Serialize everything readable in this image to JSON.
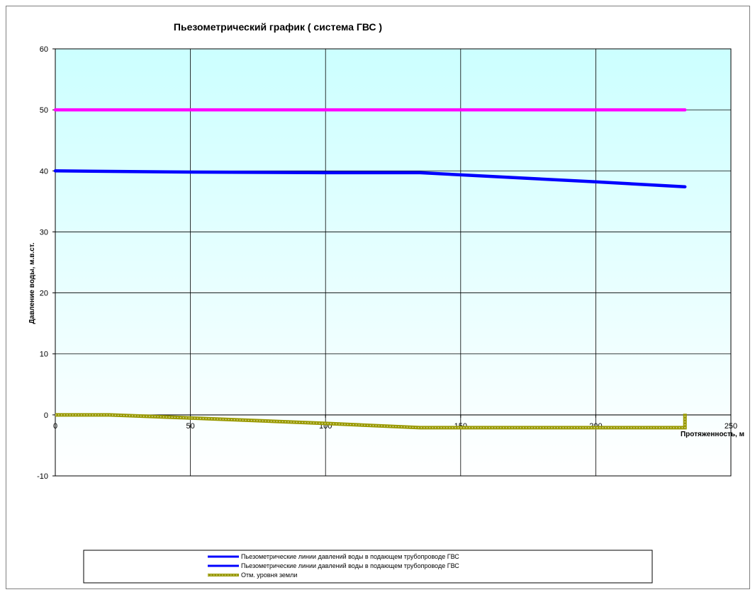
{
  "chart_data": {
    "type": "line",
    "title": "Пьезометрический график ( система ГВС )",
    "xlabel": "Протяженность, м",
    "ylabel": "Давление воды, м.в.ст.",
    "xlim": [
      0,
      250
    ],
    "ylim": [
      -10,
      60
    ],
    "x_ticks": [
      "0",
      "50",
      "100",
      "150",
      "200",
      "250"
    ],
    "y_ticks": [
      "-10",
      "0",
      "10",
      "20",
      "30",
      "40",
      "50",
      "60"
    ],
    "grid": true,
    "legend_position": "bottom",
    "series": [
      {
        "name": "Пьезометрические линии давлений воды в подающем трубопроводе ГВС",
        "color": "#ff00ff",
        "style": "solid",
        "in_legend": false,
        "points": [
          [
            0,
            50
          ],
          [
            233,
            50
          ]
        ]
      },
      {
        "name": "Пьезометрические линии давлений воды в подающем трубопроводе ГВС",
        "color": "#0000ff",
        "style": "solid",
        "in_legend": true,
        "points": [
          [
            0,
            40
          ],
          [
            50,
            39.8
          ],
          [
            100,
            39.7
          ],
          [
            135,
            39.7
          ],
          [
            200,
            38.2
          ],
          [
            233,
            37.4
          ]
        ]
      },
      {
        "name": "Пьезометрические линии давлений воды в подающем трубопроводе ГВС",
        "color": "#0000ff",
        "style": "solid",
        "in_legend": true,
        "points": []
      },
      {
        "name": "Отм. уровня земли",
        "color": "#999900",
        "style": "dotted",
        "in_legend": true,
        "points": [
          [
            0,
            0
          ],
          [
            20,
            0
          ],
          [
            50,
            -0.5
          ],
          [
            100,
            -1.4
          ],
          [
            135,
            -2.1
          ],
          [
            200,
            -2.1
          ],
          [
            232,
            -2.1
          ],
          [
            233,
            -2.1
          ],
          [
            233,
            0.2
          ]
        ]
      }
    ],
    "legend": [
      {
        "label": "Пьезометрические линии давлений воды в подающем трубопроводе ГВС",
        "color": "#0000ff",
        "style": "solid"
      },
      {
        "label": "Пьезометрические линии давлений воды в подающем трубопроводе ГВС",
        "color": "#0000ff",
        "style": "solid"
      },
      {
        "label": "Отм. уровня земли",
        "color": "#999900",
        "style": "dotted"
      }
    ]
  }
}
